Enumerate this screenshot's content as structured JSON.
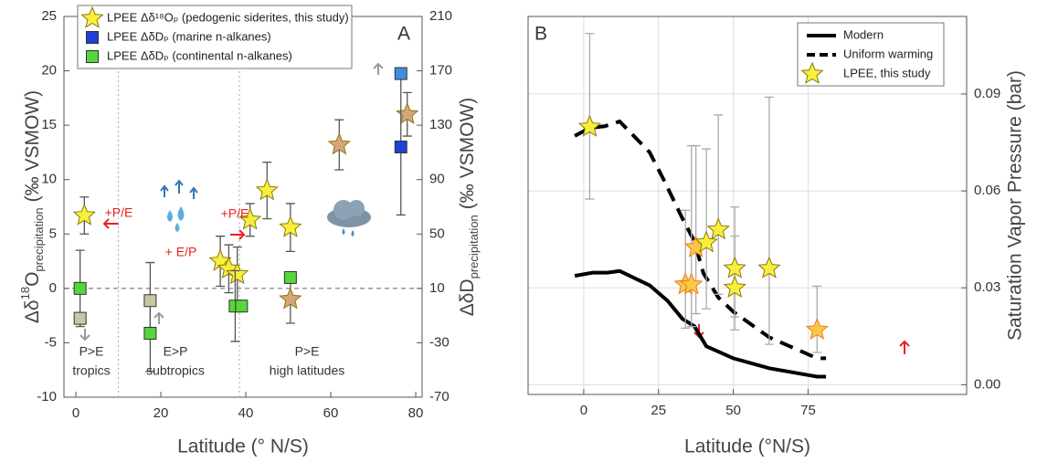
{
  "chart_data": [
    {
      "type": "scatter",
      "label": "A",
      "xlabel": "Latitude (° N/S)",
      "ylabel": {
        "prefix": "Δδ",
        "sup": "18",
        "base": "O",
        "sub": "precipitation",
        "unit": "(‰ VSMOW)"
      },
      "y2label": {
        "prefix": "ΔδD",
        "sub": "precipitation",
        "unit": "(‰ VSMOW)"
      },
      "xlim": [
        -2.8,
        81.5
      ],
      "xticks": [
        0,
        20,
        40,
        60,
        80
      ],
      "ylim": [
        -10,
        25
      ],
      "yticks": [
        -10,
        -5,
        0,
        5,
        10,
        15,
        20,
        25
      ],
      "y2lim": [
        -70,
        210
      ],
      "y2ticks": [
        -70,
        -30,
        10,
        50,
        90,
        130,
        170,
        210
      ],
      "hlines": [
        0
      ],
      "vlines": [
        10,
        38.5
      ],
      "legend": "upper left",
      "annotations": [
        "+P/E",
        "+ E/P",
        "+P/E",
        "P>E",
        "tropics",
        "E>P",
        "subtropics",
        "P>E",
        "high latitudes"
      ],
      "series": [
        {
          "name": "LPEE Δδ¹⁸Oₚ (pedogenic siderites, this study)",
          "marker": "star",
          "color": "#f7ef3c",
          "x": [
            2,
            34,
            36,
            38,
            41,
            45,
            50.5,
            50.5,
            62,
            78
          ],
          "values": [
            6.7,
            2.5,
            1.8,
            1.3,
            6.3,
            9,
            5.6,
            -1,
            13.2,
            16
          ],
          "errors": [
            1.7,
            2.3,
            2.2,
            2.5,
            1.5,
            2.6,
            2.2,
            2.2,
            2.3,
            2.0
          ],
          "point_colors": [
            "#f7ef3c",
            "#f7ef3c",
            "#f7ef3c",
            "#f7ef3c",
            "#f7ef3c",
            "#f7ef3c",
            "#f7ef3c",
            "#d4a679",
            "#d4a679",
            "#d4a679"
          ]
        },
        {
          "name": "LPEE ΔδDₚ (marine n-alkanes)",
          "marker": "square",
          "color": "#1f3fd6",
          "axis": "y2",
          "x": [
            76.5,
            76.5
          ],
          "values": [
            168,
            114
          ],
          "errors": [
            null,
            50
          ],
          "point_colors": [
            "#3d8ee0",
            "#1f3fd6"
          ]
        },
        {
          "name": "LPEE ΔδDₚ (continental n-alkanes)",
          "marker": "square",
          "color": "#55d63a",
          "axis": "y2",
          "x": [
            1,
            1,
            17.5,
            17.5,
            37.5,
            39,
            50.5
          ],
          "values": [
            10,
            -12,
            1,
            -23,
            -3,
            -3,
            18
          ],
          "errors": [
            28,
            null,
            28,
            28,
            26,
            null,
            null
          ],
          "point_colors": [
            "#55d63a",
            "#c8c8a0",
            "#c8c8a0",
            "#55d63a",
            "#55d63a",
            "#55d63a",
            "#55d63a"
          ]
        }
      ]
    },
    {
      "type": "line",
      "label": "B",
      "xlabel": "Latitude (°N/S)",
      "ylabel": "Saturation Vapor Pressure (bar)",
      "xlim": [
        -18.6,
        128
      ],
      "xticks": [
        0,
        25,
        50,
        75
      ],
      "ylim": [
        -0.003,
        0.114
      ],
      "yticks": [
        {
          "value": 0,
          "label": "0.00"
        },
        0.03,
        0.06,
        0.09
      ],
      "grid": true,
      "legend": "upper right",
      "series": [
        {
          "name": "Modern",
          "type": "line",
          "style": "solid",
          "color": "#000000",
          "x": [
            -3,
            3,
            8,
            12,
            22,
            28,
            33,
            37,
            41,
            50,
            62,
            78,
            81
          ],
          "values": [
            0.0337,
            0.0347,
            0.0347,
            0.0352,
            0.0308,
            0.026,
            0.0204,
            0.0181,
            0.0119,
            0.0082,
            0.0051,
            0.0025,
            0.0025
          ]
        },
        {
          "name": "Uniform warming",
          "type": "line",
          "style": "dashed",
          "color": "#000000",
          "x": [
            -3,
            2,
            7,
            12,
            22,
            27,
            33,
            37,
            40,
            45,
            50,
            62,
            78,
            81
          ],
          "values": [
            0.077,
            0.0795,
            0.08,
            0.0815,
            0.072,
            0.063,
            0.0515,
            0.0444,
            0.0345,
            0.027,
            0.0226,
            0.0147,
            0.0082,
            0.0082
          ]
        },
        {
          "name": "LPEE, this study",
          "type": "scatter",
          "marker": "star",
          "color": "#f7ef3c",
          "x": [
            2,
            34,
            36,
            37.5,
            41,
            45,
            50.5,
            50.5,
            62,
            78
          ],
          "values": [
            0.0798,
            0.031,
            0.031,
            0.0425,
            0.044,
            0.048,
            0.036,
            0.03,
            0.036,
            0.017
          ],
          "err_lower": [
            0.0575,
            0.0175,
            0.018,
            0.022,
            0.0235,
            0.028,
            0.021,
            0.017,
            0.0125,
            0.01
          ],
          "err_upper": [
            0.1087,
            0.054,
            0.074,
            0.074,
            0.073,
            0.0835,
            0.055,
            0.046,
            0.089,
            0.0305
          ],
          "point_colors": [
            "#f7ef3c",
            "#f9c846",
            "#f9c846",
            "#f9c846",
            "#f7ef3c",
            "#f7ef3c",
            "#f7ef3c",
            "#f7ef3c",
            "#f7ef3c",
            "#f9c846"
          ]
        }
      ]
    }
  ]
}
